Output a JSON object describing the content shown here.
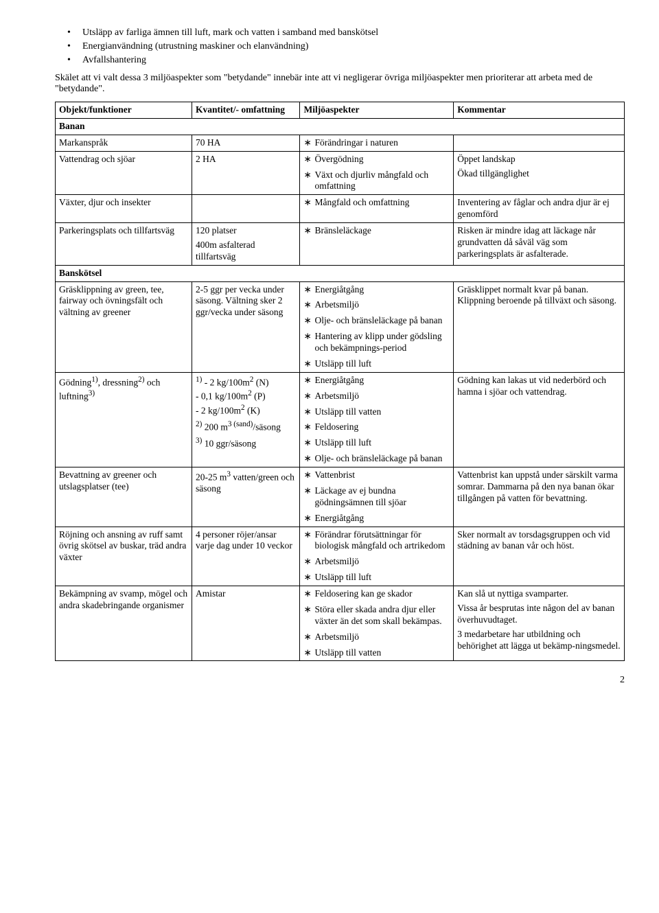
{
  "intro_bullets": [
    "Utsläpp av farliga ämnen till luft, mark och vatten i samband med banskötsel",
    "Energianvändning (utrustning maskiner och elanvändning)",
    "Avfallshantering"
  ],
  "intro_para": "Skälet att vi valt dessa 3 miljöaspekter som \"betydande\" innebär inte att vi negligerar övriga miljöaspekter men prioriterar att arbeta med de \"betydande\".",
  "headers": {
    "c1": "Objekt/funktioner",
    "c2": "Kvantitet/- omfattning",
    "c3": "Miljöaspekter",
    "c4": "Kommentar"
  },
  "section1": "Banan",
  "rows1": [
    {
      "obj": "Markanspråk",
      "qty": [
        "70 HA"
      ],
      "asp": [
        "Förändringar i naturen"
      ],
      "cmt": [
        ""
      ]
    },
    {
      "obj": "Vattendrag och sjöar",
      "qty": [
        "2 HA"
      ],
      "asp": [
        "Övergödning",
        "Växt och djurliv mångfald och omfattning"
      ],
      "cmt": [
        "Öppet landskap",
        "Ökad tillgänglighet"
      ]
    },
    {
      "obj": "Växter, djur och insekter",
      "qty": [
        ""
      ],
      "asp": [
        "Mångfald och omfattning"
      ],
      "cmt": [
        "Inventering av fåglar och andra djur är ej genomförd"
      ]
    },
    {
      "obj": "Parkeringsplats och tillfartsväg",
      "qty": [
        "120 platser",
        "400m asfalterad tillfartsväg"
      ],
      "asp": [
        "Bränsleläckage"
      ],
      "cmt": [
        "Risken är mindre idag att läckage når grundvatten då såväl väg som parkeringsplats är asfalterade."
      ]
    }
  ],
  "section2": "Banskötsel",
  "rows2": [
    {
      "obj": "Gräsklippning av green, tee, fairway och övningsfält och vältning av greener",
      "qty": [
        "2-5 ggr per vecka under säsong. Vältning sker 2 ggr/vecka under säsong"
      ],
      "asp": [
        "Energiåtgång",
        "Arbetsmiljö",
        "Olje- och bränsleläckage på banan",
        "Hantering av klipp under gödsling och bekämpnings-period",
        "Utsläpp till luft"
      ],
      "cmt": [
        "Gräsklippet normalt kvar på banan. Klippning beroende på tillväxt och säsong."
      ]
    },
    {
      "obj_html": "Gödning<sup>1)</sup>, dressning<sup>2)</sup> och luftning<sup>3)</sup>",
      "qty_html": [
        "<sup>1)</sup> - 2 kg/100m<sup>2</sup> (N)<br>- 0,1 kg/100m<sup>2</sup> (P)<br>- 2 kg/100m<sup>2</sup> (K)",
        "<sup>2)</sup> 200 m<sup>3 (sand)</sup>/säsong",
        "<sup>3)</sup> 10 ggr/säsong"
      ],
      "asp": [
        "Energiåtgång",
        "Arbetsmiljö",
        "Utsläpp till vatten",
        "Feldosering",
        "Utsläpp till luft",
        "Olje- och bränsleläckage på banan"
      ],
      "cmt": [
        "Gödning kan lakas ut vid nederbörd och hamna i sjöar och vattendrag."
      ]
    },
    {
      "obj": "Bevattning av greener och utslagsplatser (tee)",
      "qty_html": [
        "20-25 m<sup>3</sup> vatten/green och säsong"
      ],
      "asp": [
        "Vattenbrist",
        "Läckage av ej bundna gödningsämnen till sjöar",
        "Energiåtgång"
      ],
      "cmt": [
        "Vattenbrist kan uppstå under särskilt varma somrar. Dammarna på den nya banan ökar tillgången på vatten för bevattning."
      ]
    },
    {
      "obj": "Röjning och ansning av ruff samt övrig skötsel av buskar, träd andra växter",
      "qty": [
        "4 personer röjer/ansar varje dag under 10 veckor"
      ],
      "asp": [
        "Förändrar förutsättningar för biologisk mångfald och artrikedom",
        "Arbetsmiljö",
        "Utsläpp till luft"
      ],
      "cmt": [
        "Sker normalt av torsdagsgruppen och vid städning av banan vår och höst."
      ]
    },
    {
      "obj": "Bekämpning av svamp, mögel och andra skadebringande organismer",
      "qty": [
        "Amistar"
      ],
      "asp": [
        "Feldosering kan ge skador",
        "Störa eller skada andra djur eller växter än det som skall bekämpas.",
        "Arbetsmiljö",
        "Utsläpp till vatten"
      ],
      "cmt": [
        "Kan slå ut nyttiga svamparter.",
        "Vissa år besprutas inte någon del av banan överhuvudtaget.",
        "3 medarbetare har utbildning och behörighet att lägga ut bekämp-ningsmedel."
      ]
    }
  ],
  "page_number": "2"
}
